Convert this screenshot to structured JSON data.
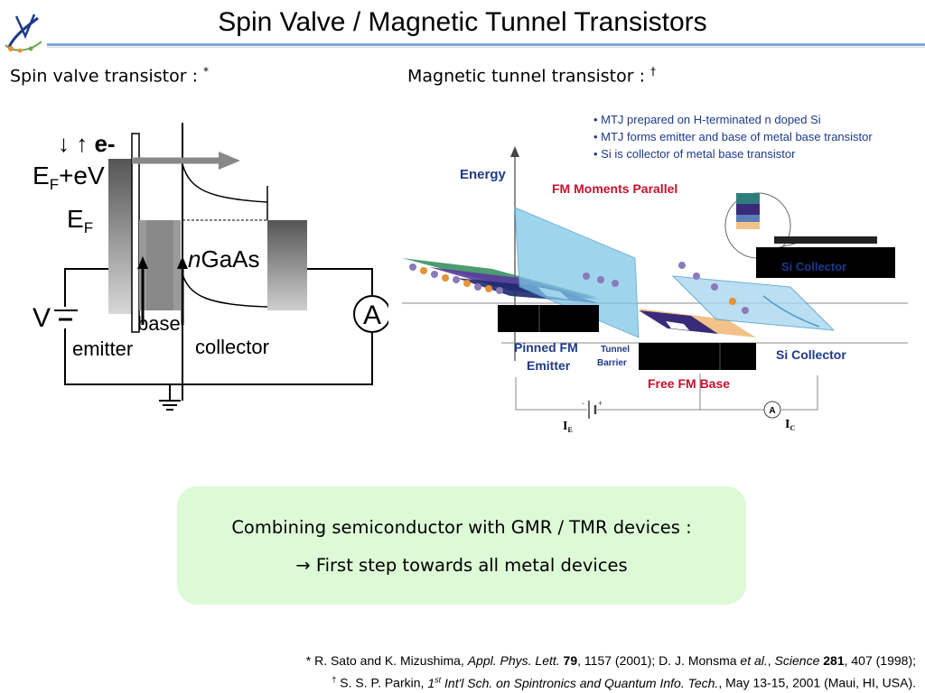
{
  "title": "Spin Valve / Magnetic Tunnel Transistors",
  "left_panel": {
    "heading": "Spin valve transistor :",
    "heading_mark": "*",
    "figure": {
      "spin_label": "↓ ↑ e-",
      "ef_ev": "E",
      "ef_ev_sub": "F",
      "ef_ev_tail": "+eV",
      "ef": "E",
      "ef_sub": "F",
      "n_italic": "n",
      "gaas": "GaAs",
      "v_label": "V",
      "base_label": "base",
      "emitter_label": "emitter",
      "collector_label": "collector",
      "ammeter_label": "A"
    }
  },
  "right_panel": {
    "heading": "Magnetic tunnel transistor :",
    "heading_mark": "†",
    "figure": {
      "bullets": [
        "• MTJ prepared on H-terminated n doped Si",
        "• MTJ forms emitter and base of metal base transistor",
        "• Si is collector of metal base transistor"
      ],
      "energy_label": "Energy",
      "fm_parallel": "FM Moments Parallel",
      "si_collector_box": "Si Collector",
      "pinned_fm_1": "Pinned FM",
      "pinned_fm_2": "Emitter",
      "tunnel_1": "Tunnel",
      "tunnel_2": "Barrier",
      "si_collector": "Si Collector",
      "free_fm_base": "Free FM Base",
      "ammeter_label": "A",
      "ie_main": "I",
      "ie_sub": "E",
      "ic_main": "I",
      "ic_sub": "C",
      "colors": {
        "heading_red": "#c8102e",
        "label_blue": "#1d3a8a",
        "box_black": "#000000"
      }
    }
  },
  "note": {
    "line1": "Combining semiconductor with GMR / TMR devices :",
    "line2": "→ First step towards all metal devices",
    "bg_color": "#ddfad6"
  },
  "references": {
    "r1_mark": "* ",
    "r1_a": "R. Sato and K. Mizushima, ",
    "r1_journal": "Appl. Phys. Lett.",
    "r1_vol": " 79",
    "r1_b": ", 1157 (2001); D. J. Monsma ",
    "r1_etal": "et al.",
    "r1_c": ", ",
    "r1_science": "Science",
    "r1_vol2": " 281",
    "r1_d": ", 407 (1998);",
    "r2_mark": "†",
    "r2_a": " S. S. P. Parkin, ",
    "r2_ord": "1",
    "r2_st": "st",
    "r2_conf": " Int'l Sch. on Spintronics and Quantum Info. Tech.",
    "r2_b": ", May 13-15, 2001 (Maui, HI, USA)."
  }
}
